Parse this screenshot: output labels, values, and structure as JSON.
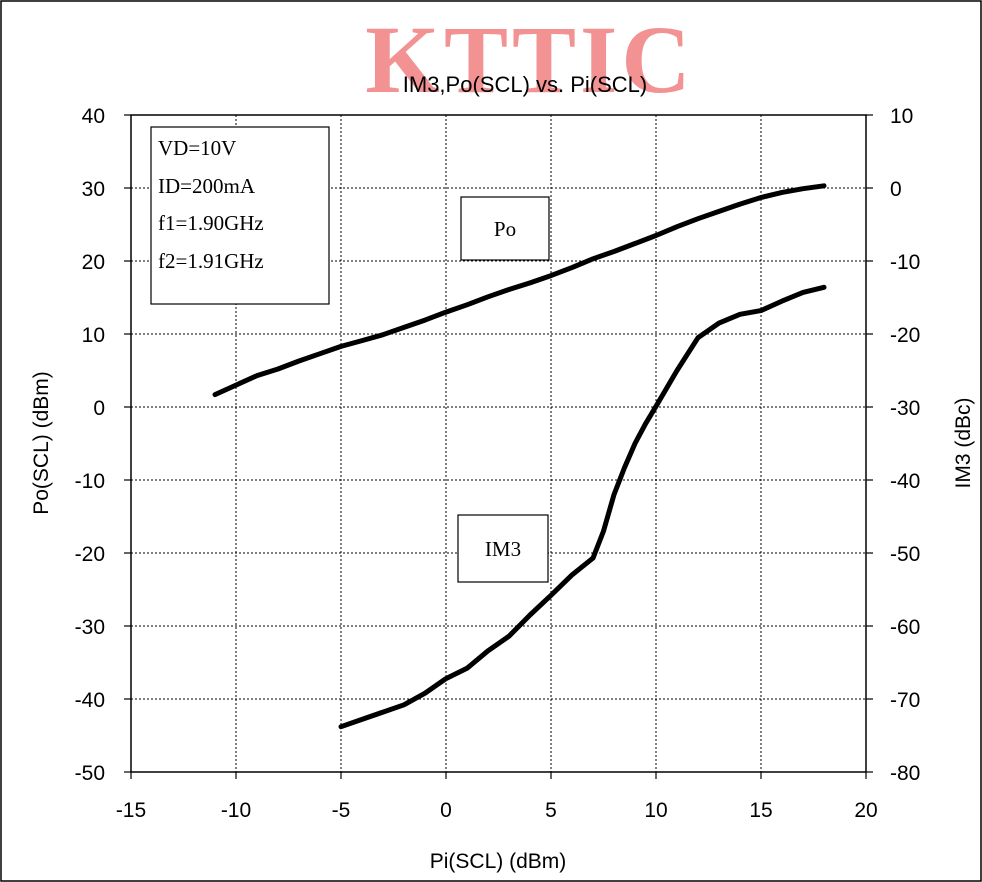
{
  "watermark": "KTTIC",
  "chart_data": {
    "type": "line",
    "title": "IM3,Po(SCL) vs. Pi(SCL)",
    "xlabel": "Pi(SCL) (dBm)",
    "ylabel": "Po(SCL) (dBm)",
    "y2label": "IM3 (dBc)",
    "xlim": [
      -15,
      20
    ],
    "ylim": [
      -50,
      40
    ],
    "y2lim": [
      -80,
      10
    ],
    "xticks": [
      -15,
      -10,
      -5,
      0,
      5,
      10,
      15,
      20
    ],
    "yticks": [
      -50,
      -40,
      -30,
      -20,
      -10,
      0,
      10,
      20,
      30,
      40
    ],
    "y2ticks": [
      -80,
      -70,
      -60,
      -50,
      -40,
      -30,
      -20,
      -10,
      0,
      10
    ],
    "grid": true,
    "conditions": [
      "VD=10V",
      "ID=200mA",
      "f1=1.90GHz",
      "f2=1.91GHz"
    ],
    "series": [
      {
        "name": "Po",
        "axis": "left",
        "x": [
          -11,
          -10,
          -9,
          -8,
          -7,
          -6,
          -5,
          -4,
          -3,
          -2,
          -1,
          0,
          1,
          2,
          3,
          4,
          5,
          6,
          7,
          8,
          9,
          10,
          11,
          12,
          13,
          14,
          15,
          16,
          17,
          18
        ],
        "y": [
          1.7,
          3.0,
          4.3,
          5.2,
          6.3,
          7.3,
          8.3,
          9.1,
          9.9,
          10.9,
          11.9,
          13.0,
          14.0,
          15.1,
          16.1,
          17.0,
          18.0,
          19.1,
          20.3,
          21.3,
          22.4,
          23.5,
          24.7,
          25.8,
          26.8,
          27.8,
          28.7,
          29.4,
          29.9,
          30.3
        ]
      },
      {
        "name": "IM3",
        "axis": "right",
        "x": [
          -5,
          -4,
          -3,
          -2,
          -1,
          0,
          1,
          2,
          3,
          4,
          5,
          6,
          7,
          7.5,
          8,
          8.5,
          9,
          9.5,
          10,
          11,
          12,
          13,
          14,
          15,
          16,
          17,
          18
        ],
        "y": [
          -73.8,
          -72.8,
          -71.8,
          -70.8,
          -69.2,
          -67.2,
          -65.8,
          -63.4,
          -61.4,
          -58.5,
          -55.8,
          -53.0,
          -50.7,
          -47.0,
          -42.0,
          -38.3,
          -35.0,
          -32.3,
          -29.9,
          -25.0,
          -20.5,
          -18.5,
          -17.3,
          -16.8,
          -15.5,
          -14.3,
          -13.6
        ]
      }
    ]
  }
}
